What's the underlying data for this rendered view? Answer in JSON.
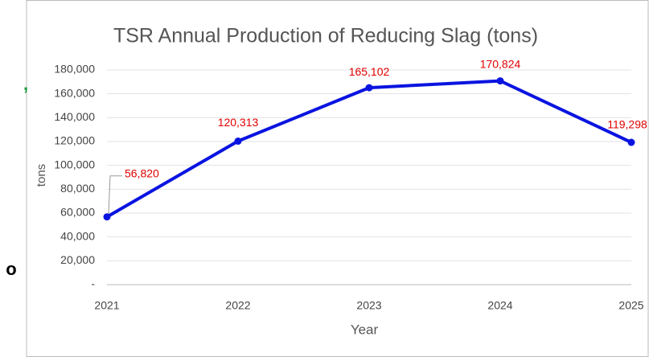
{
  "chart_data": {
    "type": "line",
    "title": "TSR  Annual Production of Reducing Slag (tons)",
    "x_label": "Year",
    "y_label": "tons",
    "categories": [
      "2021",
      "2022",
      "2023",
      "2024",
      "2025"
    ],
    "series": [
      {
        "name": "tons",
        "color": "#0a14e0",
        "values": [
          56820,
          120313,
          165102,
          170824,
          119298
        ],
        "value_labels": [
          "56,820",
          "120,313",
          "165,102",
          "170,824",
          "119,298"
        ]
      }
    ],
    "ylim": [
      0,
      180000
    ],
    "yticks": [
      {
        "value": 0,
        "label": "-"
      },
      {
        "value": 20000,
        "label": "20,000"
      },
      {
        "value": 40000,
        "label": "40,000"
      },
      {
        "value": 60000,
        "label": "60,000"
      },
      {
        "value": 80000,
        "label": "80,000"
      },
      {
        "value": 100000,
        "label": "100,000"
      },
      {
        "value": 120000,
        "label": "120,000"
      },
      {
        "value": 140000,
        "label": "140,000"
      },
      {
        "value": 160000,
        "label": "160,000"
      },
      {
        "value": 180000,
        "label": "180,000"
      }
    ],
    "grid": true,
    "label_color": "#e00000"
  },
  "side_text": [
    ",",
    "o"
  ]
}
